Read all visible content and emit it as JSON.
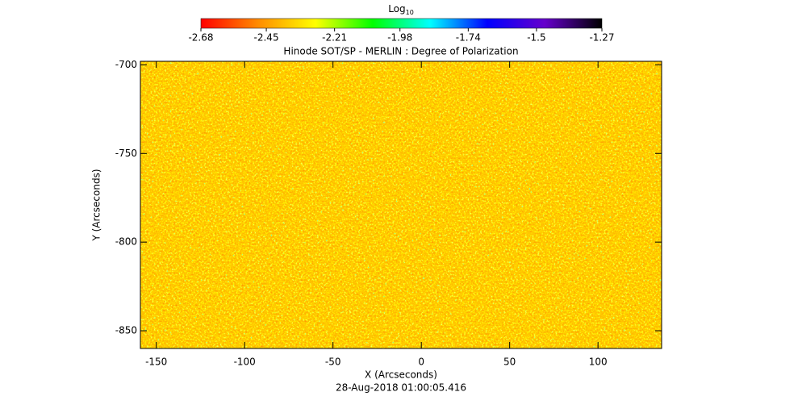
{
  "chart_data": {
    "type": "image",
    "title": "Hinode SOT/SP - MERLIN : Degree of Polarization",
    "x_label": "X (Arcseconds)",
    "y_label": "Y (Arcseconds)",
    "footnote": "28-Aug-2018 01:00:05.416",
    "xlim": [
      -159,
      136
    ],
    "xticks": [
      -150,
      -100,
      -50,
      0,
      50,
      100
    ],
    "ylim": [
      -860,
      -698
    ],
    "yticks": [
      -700,
      -750,
      -800,
      -850
    ],
    "colorbar_label": "Log",
    "colorbar_label_sub": "10",
    "colorbar_lim": [
      -2.68,
      -1.27
    ],
    "colorbar_ticks": [
      -2.68,
      -2.45,
      -2.21,
      -1.98,
      -1.74,
      -1.5,
      -1.27
    ],
    "colors": [
      "#ff0000",
      "#ff8c00",
      "#ffff00",
      "#00ff00",
      "#00ffff",
      "#0000ff",
      "#6600cc",
      "#000000"
    ]
  }
}
